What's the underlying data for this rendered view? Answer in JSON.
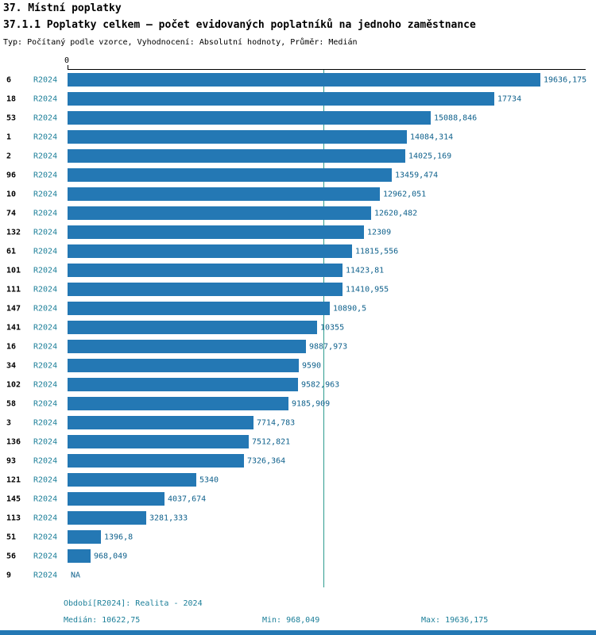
{
  "header": {
    "title": "37. Místní poplatky",
    "subtitle": "37.1.1 Poplatky celkem – počet evidovaných poplatníků na jednoho zaměstnance",
    "meta": "Typ: Počítaný podle vzorce, Vyhodnocení: Absolutní hodnoty, Průměr: Medián"
  },
  "colors": {
    "bar": "#2478b4",
    "median_line": "#2e9c8f",
    "teal_text": "#1c7f99",
    "value_text": "#0f618c",
    "strip": "#2478b4"
  },
  "chart_data": {
    "type": "bar",
    "orientation": "horizontal",
    "title": "37.1.1 Poplatky celkem – počet evidovaných poplatníků na jednoho zaměstnance",
    "period_label": "R2024",
    "axis_zero_label": "0",
    "xlim": [
      0,
      19636.175
    ],
    "max_value": 19636.175,
    "min_value": 968.049,
    "median_value": 10622.75,
    "rows": [
      {
        "id": "6",
        "value": 19636.175,
        "label": "19636,175"
      },
      {
        "id": "18",
        "value": 17734,
        "label": "17734"
      },
      {
        "id": "53",
        "value": 15088.846,
        "label": "15088,846"
      },
      {
        "id": "1",
        "value": 14084.314,
        "label": "14084,314"
      },
      {
        "id": "2",
        "value": 14025.169,
        "label": "14025,169"
      },
      {
        "id": "96",
        "value": 13459.474,
        "label": "13459,474"
      },
      {
        "id": "10",
        "value": 12962.051,
        "label": "12962,051"
      },
      {
        "id": "74",
        "value": 12620.482,
        "label": "12620,482"
      },
      {
        "id": "132",
        "value": 12309,
        "label": "12309"
      },
      {
        "id": "61",
        "value": 11815.556,
        "label": "11815,556"
      },
      {
        "id": "101",
        "value": 11423.81,
        "label": "11423,81"
      },
      {
        "id": "111",
        "value": 11410.955,
        "label": "11410,955"
      },
      {
        "id": "147",
        "value": 10890.5,
        "label": "10890,5"
      },
      {
        "id": "141",
        "value": 10355,
        "label": "10355"
      },
      {
        "id": "16",
        "value": 9887.973,
        "label": "9887,973"
      },
      {
        "id": "34",
        "value": 9590,
        "label": "9590"
      },
      {
        "id": "102",
        "value": 9582.963,
        "label": "9582,963"
      },
      {
        "id": "58",
        "value": 9185.909,
        "label": "9185,909"
      },
      {
        "id": "3",
        "value": 7714.783,
        "label": "7714,783"
      },
      {
        "id": "136",
        "value": 7512.821,
        "label": "7512,821"
      },
      {
        "id": "93",
        "value": 7326.364,
        "label": "7326,364"
      },
      {
        "id": "121",
        "value": 5340,
        "label": "5340"
      },
      {
        "id": "145",
        "value": 4037.674,
        "label": "4037,674"
      },
      {
        "id": "113",
        "value": 3281.333,
        "label": "3281,333"
      },
      {
        "id": "51",
        "value": 1396.8,
        "label": "1396,8"
      },
      {
        "id": "56",
        "value": 968.049,
        "label": "968,049"
      },
      {
        "id": "9",
        "value": null,
        "label": "NA"
      }
    ]
  },
  "footer": {
    "period": "Období[R2024]: Realita - 2024",
    "median": "Medián: 10622,75",
    "min": "Min: 968,049",
    "max": "Max: 19636,175"
  }
}
